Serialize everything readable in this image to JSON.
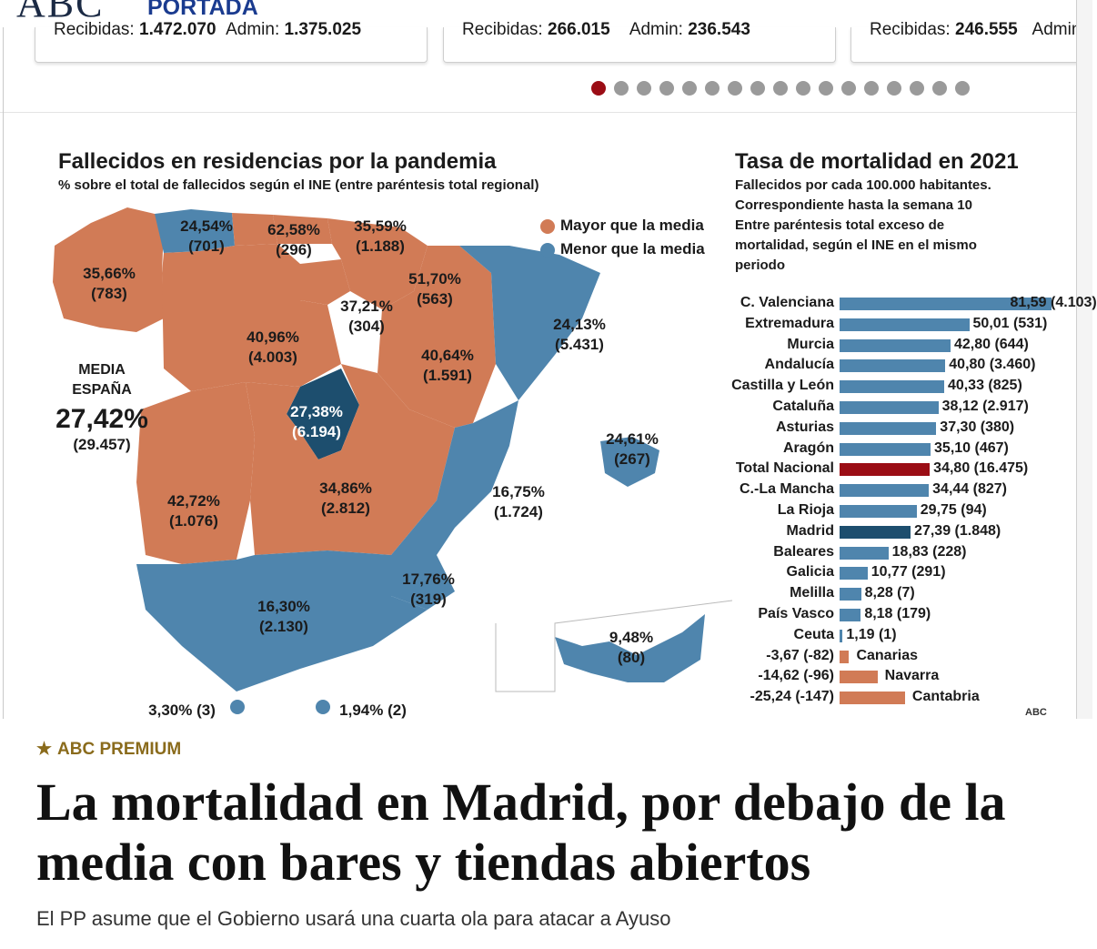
{
  "header": {
    "logo": "ABC",
    "section": "PORTADA"
  },
  "cards": [
    {
      "received_label": "Recibidas:",
      "received": "1.472.070",
      "admin_label": "Admin:",
      "admin": "1.375.025"
    },
    {
      "received_label": "Recibidas:",
      "received": "266.015",
      "admin_label": "Admin:",
      "admin": "236.543"
    },
    {
      "received_label": "Recibidas:",
      "received": "246.555",
      "admin_label": "Admin",
      "admin": ""
    }
  ],
  "carousel": {
    "count": 17,
    "active_index": 0
  },
  "infographic": {
    "map": {
      "title": "Fallecidos en residencias por la pandemia",
      "subtitle": "% sobre el total de fallecidos según el INE (entre paréntesis total regional)",
      "legend": [
        {
          "label": "Mayor que la media",
          "color": "#d17b56"
        },
        {
          "label": "Menor que la media",
          "color": "#4f85ad"
        }
      ],
      "media": {
        "label1": "MEDIA",
        "label2": "ESPAÑA",
        "value": "27,42%",
        "total": "(29.457)"
      },
      "regions": [
        {
          "pct": "35,66%",
          "total": "(783)"
        },
        {
          "pct": "24,54%",
          "total": "(701)"
        },
        {
          "pct": "62,58%",
          "total": "(296)"
        },
        {
          "pct": "35,59%",
          "total": "(1.188)"
        },
        {
          "pct": "51,70%",
          "total": "(563)"
        },
        {
          "pct": "37,21%",
          "total": "(304)"
        },
        {
          "pct": "40,96%",
          "total": "(4.003)"
        },
        {
          "pct": "40,64%",
          "total": "(1.591)"
        },
        {
          "pct": "24,13%",
          "total": "(5.431)"
        },
        {
          "pct": "27,38%",
          "total": "(6.194)"
        },
        {
          "pct": "24,61%",
          "total": "(267)"
        },
        {
          "pct": "42,72%",
          "total": "(1.076)"
        },
        {
          "pct": "34,86%",
          "total": "(2.812)"
        },
        {
          "pct": "16,75%",
          "total": "(1.724)"
        },
        {
          "pct": "17,76%",
          "total": "(319)"
        },
        {
          "pct": "16,30%",
          "total": "(2.130)"
        },
        {
          "pct": "9,48%",
          "total": "(80)"
        },
        {
          "pct": "3,30% (3)",
          "total": ""
        },
        {
          "pct": "1,94% (2)",
          "total": ""
        }
      ]
    },
    "chart_data": {
      "type": "bar",
      "title": "Tasa de mortalidad en 2021",
      "subtitle": "Fallecidos por cada 100.000 habitantes. Correspondiente hasta la semana 10 Entre paréntesis total exceso de mortalidad, según el INE en el mismo periodo",
      "categories": [
        "C. Valenciana",
        "Extremadura",
        "Murcia",
        "Andalucía",
        "Castilla y León",
        "Cataluña",
        "Asturias",
        "Aragón",
        "Total Nacional",
        "C.-La Mancha",
        "La Rioja",
        "Madrid",
        "Baleares",
        "Galicia",
        "Melilla",
        "País Vasco",
        "Ceuta",
        "Canarias",
        "Navarra",
        "Cantabria"
      ],
      "values": [
        81.59,
        50.01,
        42.8,
        40.8,
        40.33,
        38.12,
        37.3,
        35.1,
        34.8,
        34.44,
        29.75,
        27.39,
        18.83,
        10.77,
        8.28,
        8.18,
        1.19,
        -3.67,
        -14.62,
        -25.24
      ],
      "value_labels": [
        "81,59",
        "50,01",
        "42,80",
        "40,80",
        "40,33",
        "38,12",
        "37,30",
        "35,10",
        "34,80",
        "34,44",
        "29,75",
        "27,39",
        "18,83",
        "10,77",
        "8,28",
        "8,18",
        "1,19",
        "-3,67",
        "-14,62",
        "-25,24"
      ],
      "excess": [
        "(4.103)",
        "(531)",
        "(644)",
        "(3.460)",
        "(825)",
        "(2.917)",
        "(380)",
        "(467)",
        "(16.475)",
        "(827)",
        "(94)",
        "(1.848)",
        "(228)",
        "(291)",
        "(7)",
        "(179)",
        "(1)",
        "(-82)",
        "(-96)",
        "(-147)"
      ],
      "colors": {
        "default": "#4f85ad",
        "total": "#9b0d15",
        "madrid": "#1d4e6e",
        "negative": "#d17b56"
      },
      "highlight": {
        "Total Nacional": "total",
        "Madrid": "madrid"
      }
    },
    "credit": "ABC"
  },
  "article": {
    "badge": "ABC PREMIUM",
    "headline": "La mortalidad en Madrid, por debajo de la media con bares y tiendas abiertos",
    "subheadline": "El PP asume que el Gobierno usará una cuarta ola para atacar a Ayuso"
  }
}
